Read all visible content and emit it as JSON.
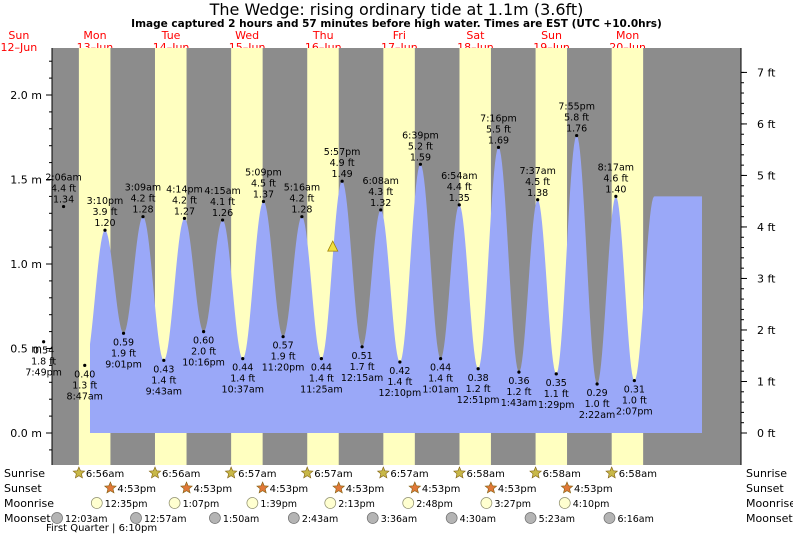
{
  "title": "The Wedge: rising  ordinary tide at 1.1m (3.6ft)",
  "subtitle": "Image captured 2 hours and 57 minutes before high water. Times are EST (UTC +10.0hrs)",
  "colors": {
    "night": "#8c8c8c",
    "day": "#ffffc0",
    "tide": "#9aa8f8",
    "day_label": "#ff0000",
    "sun_marker": "#c8b848",
    "sunset_marker": "#e07838",
    "moonrise_marker": "#ffffd0",
    "moonset_marker": "#b4b4b4",
    "now_marker": "#f0e040"
  },
  "days": [
    {
      "dow": "Sun",
      "date": "12–Jun"
    },
    {
      "dow": "Mon",
      "date": "13–Jun"
    },
    {
      "dow": "Tue",
      "date": "14–Jun"
    },
    {
      "dow": "Wed",
      "date": "15–Jun"
    },
    {
      "dow": "Thu",
      "date": "16–Jun"
    },
    {
      "dow": "Fri",
      "date": "17–Jun"
    },
    {
      "dow": "Sat",
      "date": "18–Jun"
    },
    {
      "dow": "Sun",
      "date": "19–Jun"
    },
    {
      "dow": "Mon",
      "date": "20–Jun"
    }
  ],
  "row_labels": {
    "sunrise": "Sunrise",
    "sunset": "Sunset",
    "moonrise": "Moonrise",
    "moonset": "Moonset"
  },
  "moon_phase": "First Quarter | 6:10pm",
  "chart_data": {
    "type": "area",
    "title": "The Wedge: rising  ordinary tide at 1.1m (3.6ft)",
    "ylabel_left": "m",
    "ylabel_right": "ft",
    "ylim_m": [
      -0.22,
      2.22
    ],
    "yticks_m": [
      "2.0 m",
      "1.5 m",
      "1.0 m",
      "0.5 m",
      "0.0 m"
    ],
    "yticks_ft": [
      "7 ft",
      "6 ft",
      "5 ft",
      "4 ft",
      "3 ft",
      "2 ft",
      "1 ft",
      "0 ft"
    ],
    "start_day": "Sun 12-Jun",
    "start_value": 1.14,
    "end_value": 0.31,
    "now": {
      "day": 4,
      "time": "3:00pm",
      "height_m": 1.1
    },
    "sun": [
      {
        "day": 1,
        "sunrise": "6:56am",
        "sunset": "4:53pm"
      },
      {
        "day": 2,
        "sunrise": "6:56am",
        "sunset": "4:53pm"
      },
      {
        "day": 3,
        "sunrise": "6:57am",
        "sunset": "4:53pm"
      },
      {
        "day": 4,
        "sunrise": "6:57am",
        "sunset": "4:53pm"
      },
      {
        "day": 5,
        "sunrise": "6:57am",
        "sunset": "4:53pm"
      },
      {
        "day": 6,
        "sunrise": "6:58am",
        "sunset": "4:53pm"
      },
      {
        "day": 7,
        "sunrise": "6:58am",
        "sunset": "4:53pm"
      },
      {
        "day": 8,
        "sunrise": "6:58am",
        "sunset": ""
      }
    ],
    "moonrise": [
      {
        "day": 1,
        "time": "12:35pm"
      },
      {
        "day": 2,
        "time": "1:07pm"
      },
      {
        "day": 3,
        "time": "1:39pm"
      },
      {
        "day": 4,
        "time": "2:13pm"
      },
      {
        "day": 5,
        "time": "2:48pm"
      },
      {
        "day": 6,
        "time": "3:27pm"
      },
      {
        "day": 7,
        "time": "4:10pm"
      }
    ],
    "moonset": [
      {
        "day": 1,
        "time": "12:03am"
      },
      {
        "day": 2,
        "time": "12:57am"
      },
      {
        "day": 3,
        "time": "1:50am"
      },
      {
        "day": 4,
        "time": "2:43am"
      },
      {
        "day": 5,
        "time": "3:36am"
      },
      {
        "day": 6,
        "time": "4:30am"
      },
      {
        "day": 7,
        "time": "5:23am"
      },
      {
        "day": 8,
        "time": "6:16am"
      }
    ],
    "tides": [
      {
        "day": 0,
        "time": "7:49pm",
        "m": 0.54,
        "ft": "1.8 ft",
        "type": "low"
      },
      {
        "day": 1,
        "time": "2:06am",
        "m": 1.34,
        "ft": "4.4 ft",
        "type": "high"
      },
      {
        "day": 1,
        "time": "8:47am",
        "m": 0.4,
        "ft": "1.3 ft",
        "type": "low"
      },
      {
        "day": 1,
        "time": "3:10pm",
        "m": 1.2,
        "ft": "3.9 ft",
        "type": "high"
      },
      {
        "day": 1,
        "time": "9:01pm",
        "m": 0.59,
        "ft": "1.9 ft",
        "type": "low"
      },
      {
        "day": 2,
        "time": "3:09am",
        "m": 1.28,
        "ft": "4.2 ft",
        "type": "high"
      },
      {
        "day": 2,
        "time": "9:43am",
        "m": 0.43,
        "ft": "1.4 ft",
        "type": "low"
      },
      {
        "day": 2,
        "time": "4:14pm",
        "m": 1.27,
        "ft": "4.2 ft",
        "type": "high"
      },
      {
        "day": 2,
        "time": "10:16pm",
        "m": 0.6,
        "ft": "2.0 ft",
        "type": "low"
      },
      {
        "day": 3,
        "time": "4:15am",
        "m": 1.26,
        "ft": "4.1 ft",
        "type": "high"
      },
      {
        "day": 3,
        "time": "10:37am",
        "m": 0.44,
        "ft": "1.4 ft",
        "type": "low"
      },
      {
        "day": 3,
        "time": "5:09pm",
        "m": 1.37,
        "ft": "4.5 ft",
        "type": "high"
      },
      {
        "day": 3,
        "time": "11:20pm",
        "m": 0.57,
        "ft": "1.9 ft",
        "type": "low"
      },
      {
        "day": 4,
        "time": "5:16am",
        "m": 1.28,
        "ft": "4.2 ft",
        "type": "high"
      },
      {
        "day": 4,
        "time": "11:25am",
        "m": 0.44,
        "ft": "1.4 ft",
        "type": "low"
      },
      {
        "day": 4,
        "time": "5:57pm",
        "m": 1.49,
        "ft": "4.9 ft",
        "type": "high"
      },
      {
        "day": 5,
        "time": "12:15am",
        "m": 0.51,
        "ft": "1.7 ft",
        "type": "low"
      },
      {
        "day": 5,
        "time": "6:08am",
        "m": 1.32,
        "ft": "4.3 ft",
        "type": "high"
      },
      {
        "day": 5,
        "time": "12:10pm",
        "m": 0.42,
        "ft": "1.4 ft",
        "type": "low"
      },
      {
        "day": 5,
        "time": "6:39pm",
        "m": 1.59,
        "ft": "5.2 ft",
        "type": "high"
      },
      {
        "day": 6,
        "time": "1:01am",
        "m": 0.44,
        "ft": "1.4 ft",
        "type": "low"
      },
      {
        "day": 6,
        "time": "6:54am",
        "m": 1.35,
        "ft": "4.4 ft",
        "type": "high"
      },
      {
        "day": 6,
        "time": "12:51pm",
        "m": 0.38,
        "ft": "1.2 ft",
        "type": "low"
      },
      {
        "day": 6,
        "time": "7:16pm",
        "m": 1.69,
        "ft": "5.5 ft",
        "type": "high"
      },
      {
        "day": 7,
        "time": "1:43am",
        "m": 0.36,
        "ft": "1.2 ft",
        "type": "low"
      },
      {
        "day": 7,
        "time": "7:37am",
        "m": 1.38,
        "ft": "4.5 ft",
        "type": "high"
      },
      {
        "day": 7,
        "time": "1:29pm",
        "m": 0.35,
        "ft": "1.1 ft",
        "type": "low"
      },
      {
        "day": 7,
        "time": "7:55pm",
        "m": 1.76,
        "ft": "5.8 ft",
        "type": "high"
      },
      {
        "day": 8,
        "time": "2:22am",
        "m": 0.29,
        "ft": "1.0 ft",
        "type": "low"
      },
      {
        "day": 8,
        "time": "8:17am",
        "m": 1.4,
        "ft": "4.6 ft",
        "type": "high"
      },
      {
        "day": 8,
        "time": "2:07pm",
        "m": 0.31,
        "ft": "1.0 ft",
        "type": "low"
      }
    ]
  }
}
